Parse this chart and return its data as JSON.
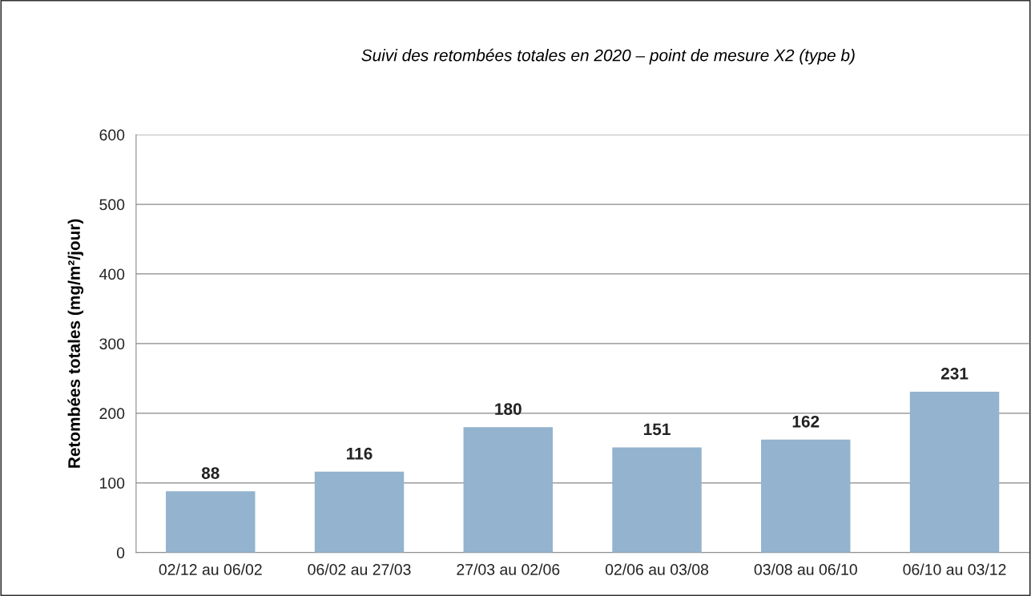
{
  "chart_data": {
    "type": "bar",
    "title": "Suivi des retombées totales en 2020 – point de mesure X2 (type b)",
    "ylabel": "Retombées totales (mg/m²/jour)",
    "categories": [
      "02/12 au 06/02",
      "06/02 au 27/03",
      "27/03 au 02/06",
      "02/06 au 03/08",
      "03/08 au 06/10",
      "06/10 au 03/12"
    ],
    "values": [
      88,
      116,
      180,
      151,
      162,
      231
    ],
    "color": "#93b3cf",
    "ylim": [
      0,
      600
    ],
    "yticks": [
      0,
      100,
      200,
      300,
      400,
      500,
      600
    ],
    "grid": "y",
    "data_labels": true,
    "legend": false
  }
}
